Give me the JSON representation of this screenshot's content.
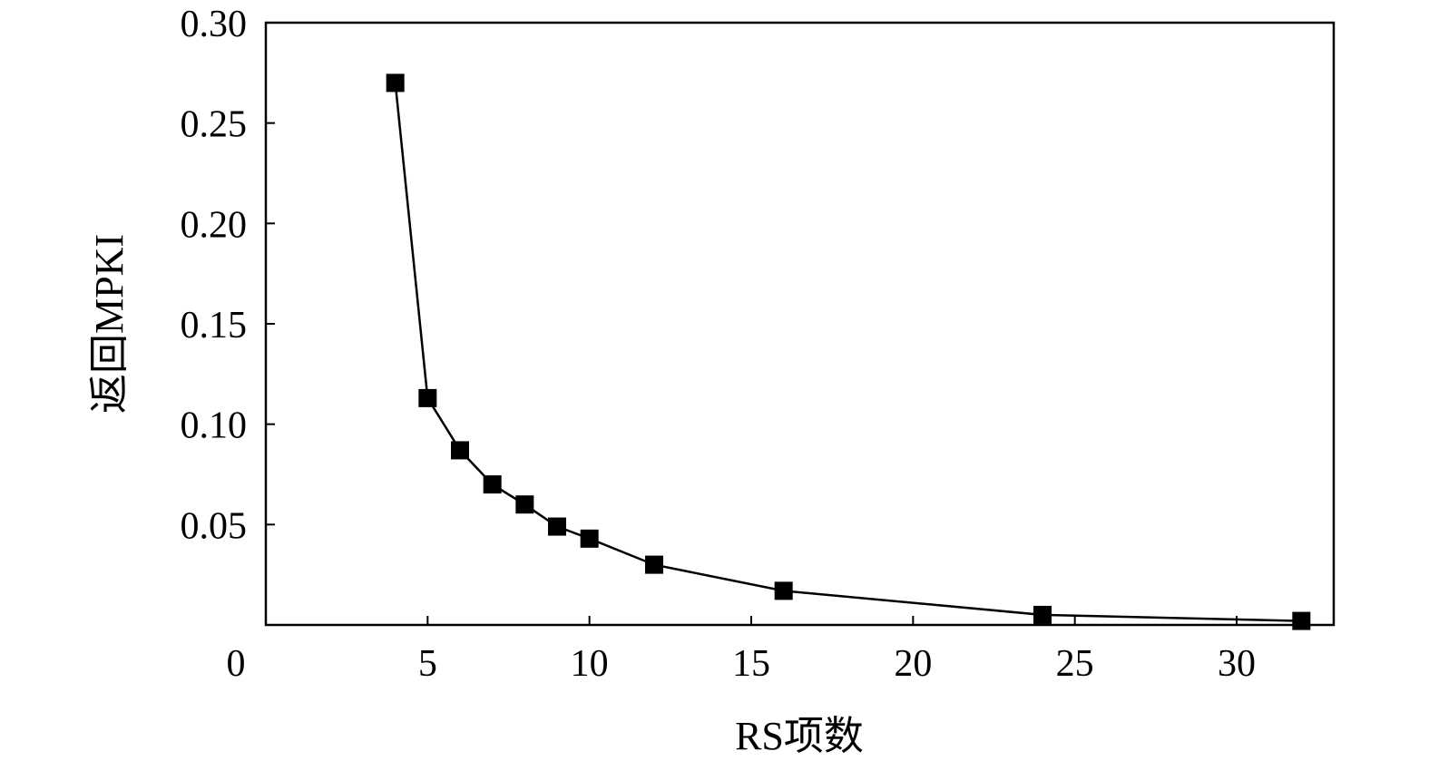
{
  "chart_data": {
    "type": "line",
    "title": "",
    "xlabel": "RS项数",
    "ylabel": "返回MPKI",
    "xlim": [
      0,
      33
    ],
    "ylim": [
      0,
      0.3
    ],
    "x_ticks": [
      0,
      5,
      10,
      15,
      20,
      25,
      30
    ],
    "x_tick_labels": [
      "0",
      "5",
      "10",
      "15",
      "20",
      "25",
      "30"
    ],
    "y_ticks": [
      0.05,
      0.1,
      0.15,
      0.2,
      0.25,
      0.3
    ],
    "y_tick_labels": [
      "0.05",
      "0.10",
      "0.15",
      "0.20",
      "0.25",
      "0.30"
    ],
    "grid": false,
    "legend": "none",
    "marker": "square",
    "color": "#000000",
    "series": [
      {
        "x": [
          4,
          5,
          6,
          7,
          8,
          9,
          10,
          12,
          16,
          24,
          32
        ],
        "y": [
          0.27,
          0.113,
          0.087,
          0.07,
          0.06,
          0.049,
          0.043,
          0.03,
          0.017,
          0.005,
          0.002
        ]
      }
    ]
  }
}
